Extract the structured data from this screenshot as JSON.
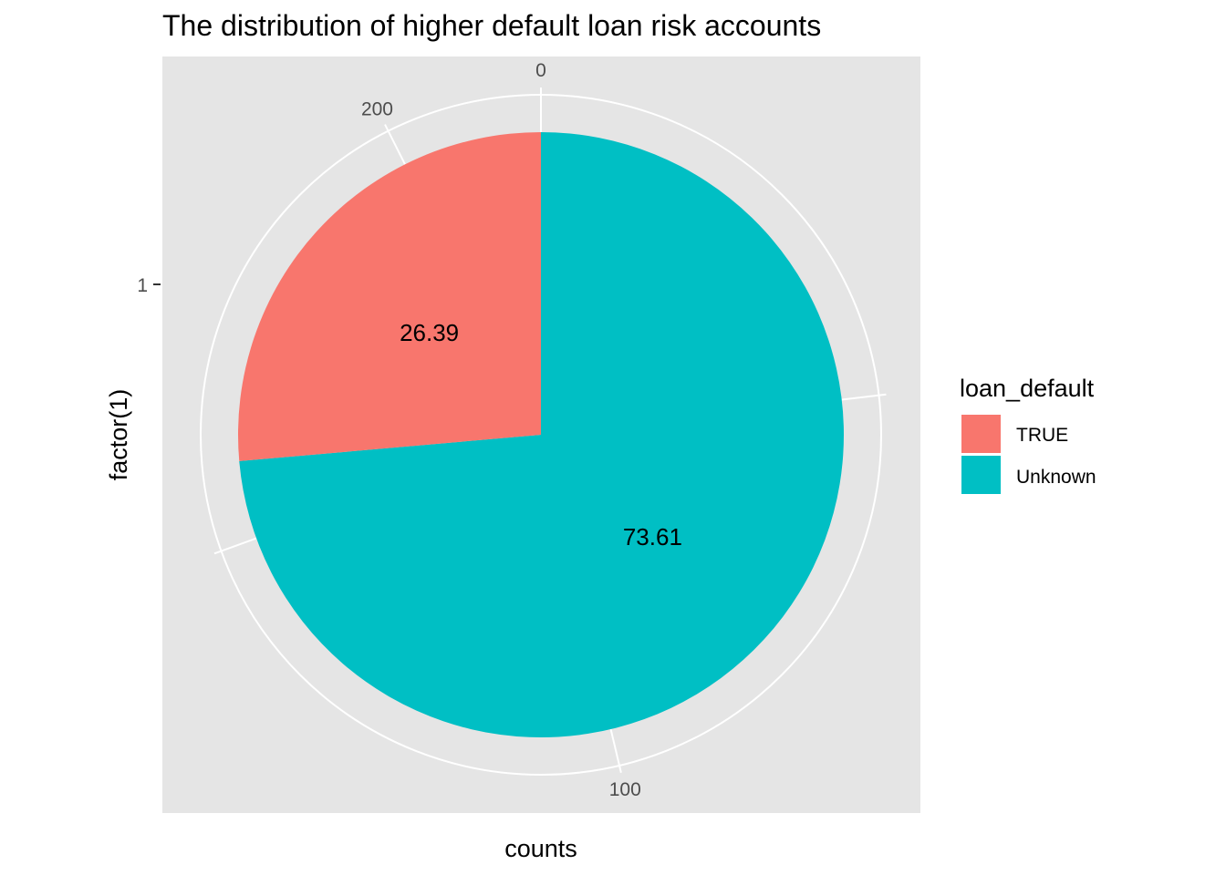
{
  "chart_data": {
    "type": "pie",
    "title": "The distribution of higher default loan risk accounts",
    "xlabel": "counts",
    "ylabel": "factor(1)",
    "y_ticks": [
      "1"
    ],
    "theta_ticks": [
      0,
      100,
      200
    ],
    "theta_total": 216,
    "legend_title": "loan_default",
    "legend_position": "right",
    "slices": [
      {
        "label": "TRUE",
        "count": 57,
        "percent_label": "26.39",
        "color": "#F8766D"
      },
      {
        "label": "Unknown",
        "count": 159,
        "percent_label": "73.61",
        "color": "#00BFC4"
      }
    ],
    "panel_background": "#e5e5e5",
    "grid": true
  }
}
